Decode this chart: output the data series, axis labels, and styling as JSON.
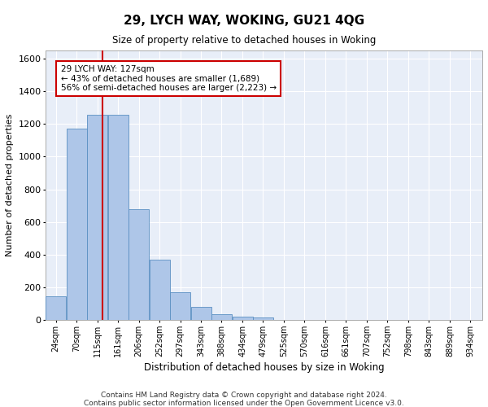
{
  "title": "29, LYCH WAY, WOKING, GU21 4QG",
  "subtitle": "Size of property relative to detached houses in Woking",
  "xlabel": "Distribution of detached houses by size in Woking",
  "ylabel": "Number of detached properties",
  "footer_line1": "Contains HM Land Registry data © Crown copyright and database right 2024.",
  "footer_line2": "Contains public sector information licensed under the Open Government Licence v3.0.",
  "bar_color": "#aec6e8",
  "bar_edge_color": "#5a8fc2",
  "bg_color": "#e8eef8",
  "grid_color": "#ffffff",
  "categories": [
    "24sqm",
    "70sqm",
    "115sqm",
    "161sqm",
    "206sqm",
    "252sqm",
    "297sqm",
    "343sqm",
    "388sqm",
    "434sqm",
    "479sqm",
    "525sqm",
    "570sqm",
    "616sqm",
    "661sqm",
    "707sqm",
    "752sqm",
    "798sqm",
    "843sqm",
    "889sqm",
    "934sqm"
  ],
  "bar_values": [
    145,
    1170,
    1255,
    1255,
    680,
    370,
    170,
    80,
    35,
    22,
    15,
    0,
    0,
    0,
    0,
    0,
    0,
    0,
    0,
    0,
    0
  ],
  "property_size_sqm": 127,
  "annotation_line1": "29 LYCH WAY: 127sqm",
  "annotation_line2": "← 43% of detached houses are smaller (1,689)",
  "annotation_line3": "56% of semi-detached houses are larger (2,223) →",
  "vline_color": "#cc0000",
  "annotation_box_color": "#ffffff",
  "annotation_box_edge": "#cc0000",
  "ylim": [
    0,
    1650
  ],
  "yticks": [
    0,
    200,
    400,
    600,
    800,
    1000,
    1200,
    1400,
    1600
  ]
}
